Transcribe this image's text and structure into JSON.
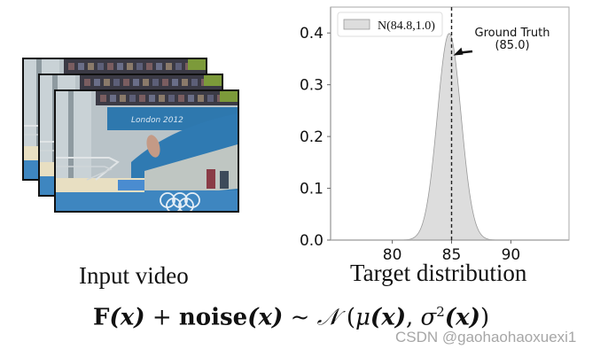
{
  "input": {
    "caption": "Input video",
    "frames": [
      {
        "name": "frame-1",
        "banner_text": "London 2012"
      },
      {
        "name": "frame-2",
        "banner_text": "London 2012"
      },
      {
        "name": "frame-3",
        "banner_text": "London 2012"
      }
    ]
  },
  "target": {
    "caption": "Target distribution"
  },
  "formula": {
    "F": "F",
    "x1": "(x)",
    "plus": " + ",
    "noise": "noise",
    "x2": "(x)",
    "sim": " ~ ",
    "N": "𝒩",
    "open": " (",
    "mu": "μ",
    "x3": "(x)",
    "comma": ", ",
    "sigma": "σ",
    "sq": "2",
    "x4": "(x)",
    "close": ")"
  },
  "watermark": "CSDN @gaohaohaoxuexi1",
  "chart_data": {
    "type": "area",
    "title": "",
    "xlabel": "",
    "ylabel": "",
    "xlim": [
      74.8,
      94.9
    ],
    "ylim": [
      0.0,
      0.45
    ],
    "xticks": [
      80,
      85,
      90
    ],
    "yticks": [
      0.0,
      0.1,
      0.2,
      0.3,
      0.4
    ],
    "ytick_labels": [
      "0.0",
      "0.1",
      "0.2",
      "0.3",
      "0.4"
    ],
    "grid": false,
    "legend": {
      "position": "upper left",
      "entries": [
        "N(84.8,1.0)"
      ]
    },
    "series": [
      {
        "name": "N(84.8,1.0)",
        "distribution": "normal",
        "mean": 84.8,
        "std": 1.0,
        "peak": 0.399,
        "fill": "#dddddd",
        "edge": "#999999"
      }
    ],
    "vline": {
      "x": 85.0,
      "style": "dashed",
      "color": "#222222"
    },
    "annotations": [
      {
        "text": "Ground Truth\n(85.0)",
        "line1": "Ground Truth",
        "line2": "(85.0)",
        "arrow_to": [
          85.0,
          0.36
        ]
      }
    ]
  }
}
